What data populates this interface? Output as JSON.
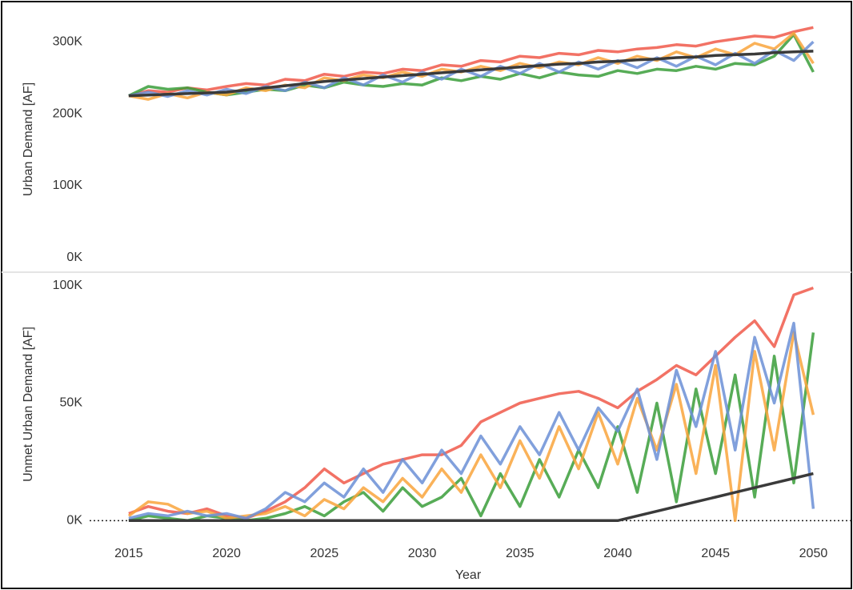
{
  "chart_data": [
    {
      "type": "line",
      "ylabel": "Urban Demand [AF]",
      "x": [
        2015,
        2016,
        2017,
        2018,
        2019,
        2020,
        2021,
        2022,
        2023,
        2024,
        2025,
        2026,
        2027,
        2028,
        2029,
        2030,
        2031,
        2032,
        2033,
        2034,
        2035,
        2036,
        2037,
        2038,
        2039,
        2040,
        2041,
        2042,
        2043,
        2044,
        2045,
        2046,
        2047,
        2048,
        2049,
        2050
      ],
      "xlim": [
        2013,
        2051.7
      ],
      "ylim": [
        -18000,
        347000
      ],
      "yticks": [
        {
          "value": 0,
          "label": "0K"
        },
        {
          "value": 100000,
          "label": "100K"
        },
        {
          "value": 200000,
          "label": "200K"
        },
        {
          "value": 300000,
          "label": "300K"
        }
      ],
      "series": [
        {
          "color": "#f0594a",
          "values": [
            225000,
            232000,
            230000,
            236000,
            233000,
            238000,
            242000,
            240000,
            248000,
            246000,
            255000,
            252000,
            258000,
            256000,
            262000,
            260000,
            268000,
            266000,
            274000,
            272000,
            280000,
            278000,
            284000,
            282000,
            288000,
            286000,
            290000,
            292000,
            296000,
            294000,
            300000,
            304000,
            308000,
            306000,
            314000,
            320000
          ]
        },
        {
          "color": "#3a9e3a",
          "values": [
            225000,
            238000,
            234000,
            236000,
            230000,
            226000,
            230000,
            234000,
            232000,
            240000,
            236000,
            244000,
            240000,
            238000,
            242000,
            240000,
            250000,
            246000,
            252000,
            248000,
            256000,
            250000,
            258000,
            254000,
            252000,
            260000,
            256000,
            262000,
            260000,
            266000,
            262000,
            270000,
            268000,
            280000,
            310000,
            258000
          ]
        },
        {
          "color": "#f9a43c",
          "values": [
            225000,
            220000,
            228000,
            222000,
            230000,
            226000,
            236000,
            232000,
            240000,
            236000,
            250000,
            246000,
            254000,
            250000,
            258000,
            252000,
            262000,
            258000,
            266000,
            260000,
            270000,
            264000,
            272000,
            268000,
            278000,
            270000,
            280000,
            274000,
            286000,
            278000,
            290000,
            282000,
            298000,
            290000,
            312000,
            270000
          ]
        },
        {
          "color": "#6b8fd6",
          "values": [
            225000,
            230000,
            224000,
            232000,
            226000,
            234000,
            228000,
            238000,
            232000,
            244000,
            236000,
            250000,
            240000,
            254000,
            244000,
            258000,
            248000,
            262000,
            252000,
            266000,
            256000,
            270000,
            258000,
            272000,
            262000,
            274000,
            264000,
            278000,
            266000,
            280000,
            268000,
            284000,
            270000,
            288000,
            274000,
            300000
          ]
        },
        {
          "color": "#3a3a3a",
          "values": [
            225000,
            226000,
            227000,
            228000,
            229000,
            230000,
            233000,
            236000,
            239000,
            242000,
            245000,
            247000,
            249000,
            251000,
            253000,
            255000,
            257000,
            259000,
            261000,
            263000,
            265000,
            267000,
            269000,
            270000,
            272000,
            273000,
            275000,
            276000,
            278000,
            279000,
            281000,
            282000,
            283000,
            285000,
            286000,
            287000
          ]
        }
      ]
    },
    {
      "type": "line",
      "ylabel": "Unmet Urban Demand [AF]",
      "xlabel": "Year",
      "x": [
        2015,
        2016,
        2017,
        2018,
        2019,
        2020,
        2021,
        2022,
        2023,
        2024,
        2025,
        2026,
        2027,
        2028,
        2029,
        2030,
        2031,
        2032,
        2033,
        2034,
        2035,
        2036,
        2037,
        2038,
        2039,
        2040,
        2041,
        2042,
        2043,
        2044,
        2045,
        2046,
        2047,
        2048,
        2049,
        2050
      ],
      "xlim": [
        2013,
        2051.7
      ],
      "xticks": [
        2015,
        2020,
        2025,
        2030,
        2035,
        2040,
        2045,
        2050
      ],
      "ylim": [
        -5000,
        105000
      ],
      "yticks": [
        {
          "value": 0,
          "label": "0K"
        },
        {
          "value": 50000,
          "label": "50K"
        },
        {
          "value": 100000,
          "label": "100K"
        }
      ],
      "series": [
        {
          "color": "#f0594a",
          "values": [
            3000,
            6000,
            4000,
            3000,
            5000,
            2000,
            1000,
            4000,
            8000,
            14000,
            22000,
            16000,
            20000,
            24000,
            26000,
            28000,
            28000,
            32000,
            42000,
            46000,
            50000,
            52000,
            54000,
            55000,
            52000,
            48000,
            55000,
            60000,
            66000,
            62000,
            70000,
            78000,
            85000,
            74000,
            96000,
            99000
          ]
        },
        {
          "color": "#3a9e3a",
          "values": [
            0,
            2000,
            1000,
            0,
            2000,
            1000,
            0,
            1000,
            3000,
            6000,
            2000,
            8000,
            12000,
            4000,
            14000,
            6000,
            10000,
            18000,
            2000,
            20000,
            6000,
            26000,
            10000,
            30000,
            14000,
            40000,
            12000,
            50000,
            8000,
            56000,
            20000,
            62000,
            10000,
            70000,
            16000,
            80000
          ]
        },
        {
          "color": "#f9a43c",
          "values": [
            2000,
            8000,
            7000,
            3000,
            4000,
            1000,
            2000,
            3000,
            6000,
            2000,
            9000,
            5000,
            14000,
            8000,
            18000,
            10000,
            22000,
            12000,
            28000,
            14000,
            34000,
            18000,
            40000,
            22000,
            46000,
            24000,
            52000,
            30000,
            58000,
            20000,
            66000,
            0,
            72000,
            30000,
            80000,
            45000
          ]
        },
        {
          "color": "#6b8fd6",
          "values": [
            1000,
            3000,
            2000,
            4000,
            2000,
            3000,
            1000,
            5000,
            12000,
            8000,
            16000,
            10000,
            22000,
            12000,
            26000,
            16000,
            30000,
            20000,
            36000,
            24000,
            40000,
            28000,
            46000,
            30000,
            48000,
            38000,
            56000,
            26000,
            64000,
            40000,
            72000,
            30000,
            78000,
            50000,
            84000,
            5000
          ]
        },
        {
          "color": "#3a3a3a",
          "values": [
            0,
            0,
            0,
            0,
            0,
            0,
            0,
            0,
            0,
            0,
            0,
            0,
            0,
            0,
            0,
            0,
            0,
            0,
            0,
            0,
            0,
            0,
            0,
            0,
            0,
            0,
            2000,
            4000,
            6000,
            8000,
            10000,
            12000,
            14000,
            16000,
            18000,
            20000
          ]
        }
      ]
    }
  ]
}
